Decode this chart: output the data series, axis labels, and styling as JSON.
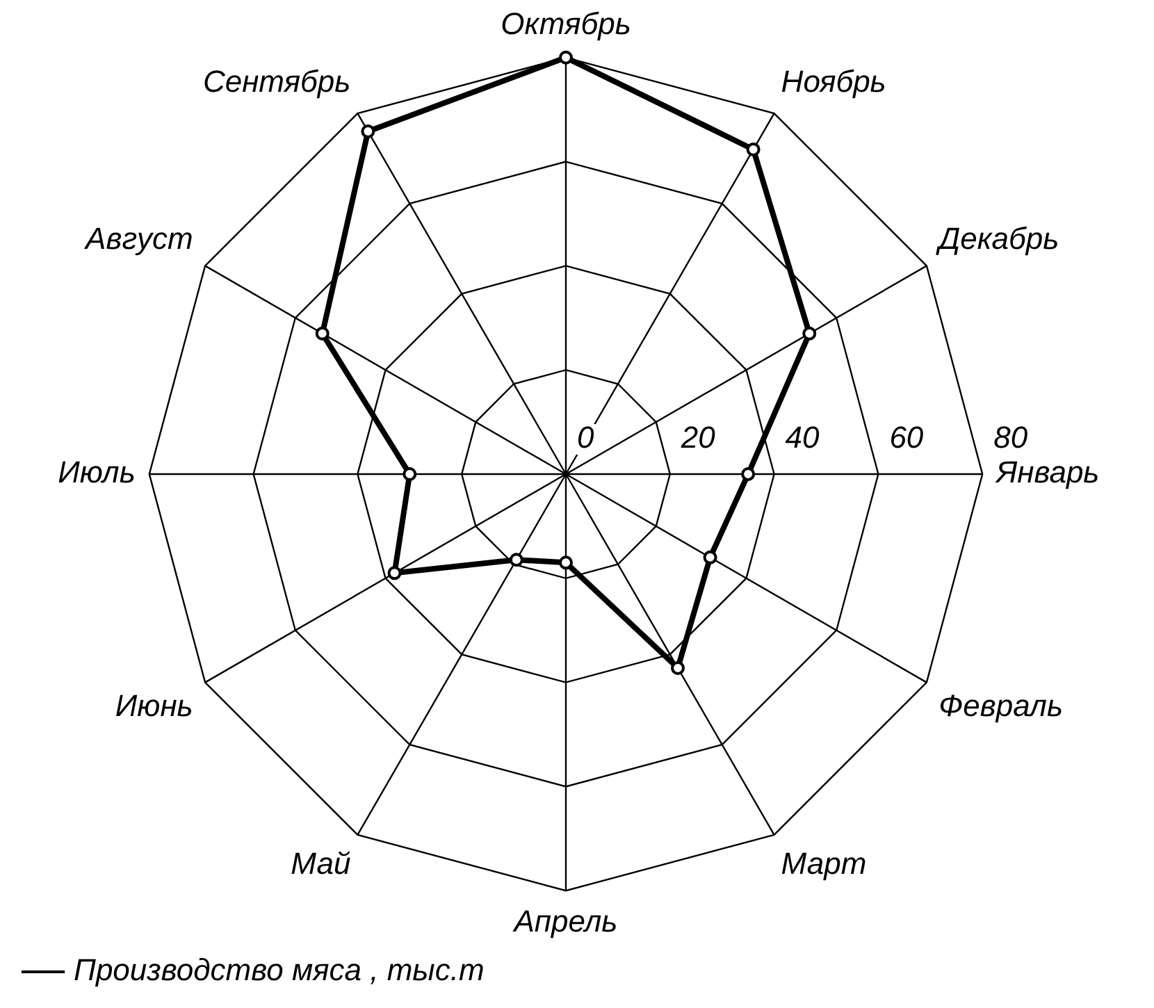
{
  "chart_data": {
    "type": "radar",
    "categories": [
      "Октябрь",
      "Ноябрь",
      "Декабрь",
      "Январь",
      "Февраль",
      "Март",
      "Апрель",
      "Май",
      "Июнь",
      "Июль",
      "Август",
      "Сентябрь"
    ],
    "series": [
      {
        "name": "Производство мяса , тыс.т",
        "color": "#000000",
        "values": [
          80,
          72,
          54,
          35,
          32,
          43,
          17,
          19,
          38,
          30,
          54,
          76
        ]
      }
    ],
    "ylim": [
      0,
      80
    ],
    "yticks": [
      0,
      20,
      40,
      60,
      80
    ],
    "grid": true,
    "legend": "bottom left",
    "marker": "circle",
    "line_style": "solid"
  }
}
